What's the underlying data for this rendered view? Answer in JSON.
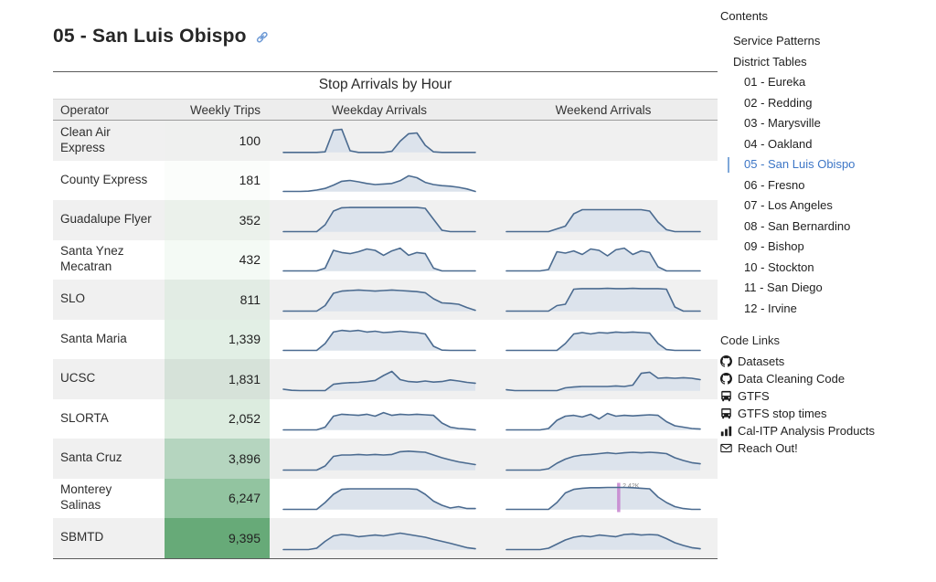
{
  "page": {
    "title": "05 - San Luis Obispo",
    "accent_blue": "#3d76c6"
  },
  "table": {
    "title": "Stop Arrivals by Hour",
    "columns": {
      "operator": "Operator",
      "weekly_trips": "Weekly Trips",
      "weekday": "Weekday Arrivals",
      "weekend": "Weekend Arrivals"
    },
    "rows": [
      {
        "operator": "Clean Air Express",
        "weekly_trips": "100",
        "trips_color": "#eff0ef"
      },
      {
        "operator": "County Express",
        "weekly_trips": "181",
        "trips_color": "#fbfdfb"
      },
      {
        "operator": "Guadalupe Flyer",
        "weekly_trips": "352",
        "trips_color": "#ebf1eb"
      },
      {
        "operator": "Santa Ynez Mecatran",
        "weekly_trips": "432",
        "trips_color": "#f4faf5"
      },
      {
        "operator": "SLO",
        "weekly_trips": "811",
        "trips_color": "#e2ece4"
      },
      {
        "operator": "Santa Maria",
        "weekly_trips": "1,339",
        "trips_color": "#e2efe5"
      },
      {
        "operator": "UCSC",
        "weekly_trips": "1,831",
        "trips_color": "#d6e2d9"
      },
      {
        "operator": "SLORTA",
        "weekly_trips": "2,052",
        "trips_color": "#dcecdf"
      },
      {
        "operator": "Santa Cruz",
        "weekly_trips": "3,896",
        "trips_color": "#b5d5bf"
      },
      {
        "operator": "Monterey Salinas",
        "weekly_trips": "6,247",
        "trips_color": "#92c4a0"
      },
      {
        "operator": "SBMTD",
        "weekly_trips": "9,395",
        "trips_color": "#67aa78"
      }
    ]
  },
  "chart_data": {
    "type": "area",
    "title": "Stop Arrivals by Hour",
    "x": "hour of day 0-23",
    "note": "sparkline area charts; values normalized 0-1 of each operator's peak hourly stop arrivals",
    "line_color": "#4b6b90",
    "fill_color": "#dce3ec",
    "series": [
      {
        "name": "Clean Air Express",
        "weekday": [
          0.04,
          0.04,
          0.04,
          0.04,
          0.04,
          0.06,
          0.85,
          0.88,
          0.1,
          0.04,
          0.04,
          0.04,
          0.04,
          0.08,
          0.45,
          0.72,
          0.75,
          0.3,
          0.06,
          0.04,
          0.04,
          0.04,
          0.04,
          0.04
        ],
        "weekend": null
      },
      {
        "name": "County Express",
        "weekday": [
          0.05,
          0.05,
          0.05,
          0.06,
          0.1,
          0.16,
          0.28,
          0.42,
          0.45,
          0.4,
          0.34,
          0.3,
          0.32,
          0.34,
          0.44,
          0.62,
          0.55,
          0.38,
          0.3,
          0.26,
          0.24,
          0.2,
          0.14,
          0.05
        ],
        "weekend": null
      },
      {
        "name": "Guadalupe Flyer",
        "weekday": [
          0.05,
          0.05,
          0.05,
          0.05,
          0.05,
          0.3,
          0.8,
          0.92,
          0.93,
          0.93,
          0.93,
          0.93,
          0.93,
          0.93,
          0.93,
          0.93,
          0.93,
          0.9,
          0.5,
          0.1,
          0.05,
          0.05,
          0.05,
          0.05
        ],
        "weekend": [
          0.05,
          0.05,
          0.05,
          0.05,
          0.05,
          0.05,
          0.15,
          0.25,
          0.7,
          0.85,
          0.85,
          0.85,
          0.85,
          0.85,
          0.85,
          0.85,
          0.85,
          0.8,
          0.4,
          0.12,
          0.05,
          0.05,
          0.05,
          0.05
        ]
      },
      {
        "name": "Santa Ynez Mecatran",
        "weekday": [
          0.05,
          0.05,
          0.05,
          0.05,
          0.05,
          0.15,
          0.8,
          0.72,
          0.68,
          0.75,
          0.85,
          0.8,
          0.62,
          0.78,
          0.88,
          0.62,
          0.72,
          0.68,
          0.15,
          0.05,
          0.05,
          0.05,
          0.05,
          0.05
        ],
        "weekend": [
          0.05,
          0.05,
          0.05,
          0.05,
          0.05,
          0.1,
          0.75,
          0.7,
          0.78,
          0.65,
          0.85,
          0.8,
          0.6,
          0.82,
          0.88,
          0.65,
          0.78,
          0.72,
          0.2,
          0.05,
          0.05,
          0.05,
          0.05,
          0.05
        ]
      },
      {
        "name": "SLO",
        "weekday": [
          0.05,
          0.05,
          0.05,
          0.05,
          0.05,
          0.25,
          0.7,
          0.78,
          0.8,
          0.82,
          0.8,
          0.78,
          0.8,
          0.82,
          0.8,
          0.78,
          0.76,
          0.72,
          0.5,
          0.35,
          0.33,
          0.3,
          0.18,
          0.08
        ],
        "weekend": [
          0.05,
          0.05,
          0.05,
          0.05,
          0.05,
          0.05,
          0.25,
          0.3,
          0.85,
          0.87,
          0.87,
          0.87,
          0.88,
          0.87,
          0.87,
          0.88,
          0.87,
          0.87,
          0.87,
          0.85,
          0.2,
          0.05,
          0.05,
          0.05
        ]
      },
      {
        "name": "Santa Maria",
        "weekday": [
          0.05,
          0.05,
          0.05,
          0.05,
          0.05,
          0.3,
          0.72,
          0.78,
          0.75,
          0.78,
          0.72,
          0.75,
          0.7,
          0.72,
          0.75,
          0.72,
          0.7,
          0.65,
          0.2,
          0.06,
          0.05,
          0.05,
          0.05,
          0.05
        ],
        "weekend": [
          0.05,
          0.05,
          0.05,
          0.05,
          0.05,
          0.05,
          0.05,
          0.3,
          0.65,
          0.7,
          0.65,
          0.7,
          0.68,
          0.72,
          0.7,
          0.72,
          0.7,
          0.68,
          0.3,
          0.08,
          0.05,
          0.05,
          0.05,
          0.05
        ]
      },
      {
        "name": "UCSC",
        "weekday": [
          0.1,
          0.06,
          0.05,
          0.05,
          0.05,
          0.05,
          0.28,
          0.32,
          0.34,
          0.35,
          0.38,
          0.42,
          0.6,
          0.75,
          0.45,
          0.38,
          0.36,
          0.4,
          0.36,
          0.38,
          0.44,
          0.4,
          0.35,
          0.32
        ],
        "weekend": [
          0.08,
          0.05,
          0.05,
          0.05,
          0.05,
          0.05,
          0.05,
          0.15,
          0.18,
          0.2,
          0.2,
          0.2,
          0.2,
          0.22,
          0.2,
          0.25,
          0.68,
          0.72,
          0.5,
          0.52,
          0.5,
          0.52,
          0.5,
          0.45
        ]
      },
      {
        "name": "SLORTA",
        "weekday": [
          0.05,
          0.05,
          0.05,
          0.05,
          0.05,
          0.15,
          0.55,
          0.62,
          0.6,
          0.58,
          0.62,
          0.55,
          0.68,
          0.58,
          0.62,
          0.6,
          0.62,
          0.6,
          0.58,
          0.3,
          0.15,
          0.1,
          0.08,
          0.05
        ],
        "weekend": [
          0.05,
          0.05,
          0.05,
          0.05,
          0.05,
          0.1,
          0.4,
          0.55,
          0.58,
          0.52,
          0.62,
          0.45,
          0.65,
          0.55,
          0.58,
          0.56,
          0.58,
          0.6,
          0.58,
          0.35,
          0.2,
          0.15,
          0.1,
          0.08
        ]
      },
      {
        "name": "Santa Cruz",
        "weekday": [
          0.05,
          0.05,
          0.05,
          0.05,
          0.05,
          0.2,
          0.55,
          0.6,
          0.6,
          0.62,
          0.6,
          0.62,
          0.6,
          0.62,
          0.72,
          0.74,
          0.72,
          0.7,
          0.6,
          0.5,
          0.42,
          0.35,
          0.3,
          0.25
        ],
        "weekend": [
          0.05,
          0.05,
          0.05,
          0.05,
          0.05,
          0.1,
          0.3,
          0.45,
          0.55,
          0.6,
          0.62,
          0.65,
          0.68,
          0.65,
          0.68,
          0.7,
          0.68,
          0.7,
          0.68,
          0.65,
          0.5,
          0.4,
          0.32,
          0.28
        ]
      },
      {
        "name": "Monterey Salinas",
        "weekday": [
          0.05,
          0.05,
          0.05,
          0.05,
          0.05,
          0.3,
          0.6,
          0.78,
          0.8,
          0.8,
          0.8,
          0.8,
          0.8,
          0.8,
          0.8,
          0.8,
          0.78,
          0.6,
          0.35,
          0.2,
          0.1,
          0.15,
          0.08,
          0.08
        ],
        "weekend": [
          0.05,
          0.05,
          0.05,
          0.05,
          0.05,
          0.05,
          0.3,
          0.65,
          0.78,
          0.82,
          0.84,
          0.84,
          0.85,
          0.85,
          0.85,
          0.84,
          0.82,
          0.8,
          0.5,
          0.3,
          0.15,
          0.08,
          0.05,
          0.05
        ],
        "weekend_marker": {
          "x_frac": 0.58,
          "label": "2.42K",
          "color": "#c583cf"
        }
      },
      {
        "name": "SBMTD",
        "weekday": [
          0.05,
          0.05,
          0.05,
          0.05,
          0.1,
          0.35,
          0.55,
          0.6,
          0.58,
          0.52,
          0.55,
          0.58,
          0.55,
          0.6,
          0.65,
          0.6,
          0.55,
          0.5,
          0.42,
          0.35,
          0.28,
          0.2,
          0.12,
          0.08
        ],
        "weekend": [
          0.05,
          0.05,
          0.05,
          0.05,
          0.05,
          0.1,
          0.25,
          0.4,
          0.5,
          0.55,
          0.52,
          0.58,
          0.55,
          0.52,
          0.6,
          0.62,
          0.58,
          0.6,
          0.58,
          0.45,
          0.3,
          0.2,
          0.12,
          0.08
        ]
      }
    ]
  },
  "sidebar": {
    "contents_title": "Contents",
    "items": [
      {
        "label": "Service Patterns",
        "level": 1,
        "active": false
      },
      {
        "label": "District Tables",
        "level": 1,
        "active": false
      },
      {
        "label": "01 - Eureka",
        "level": 2,
        "active": false
      },
      {
        "label": "02 - Redding",
        "level": 2,
        "active": false
      },
      {
        "label": "03 - Marysville",
        "level": 2,
        "active": false
      },
      {
        "label": "04 - Oakland",
        "level": 2,
        "active": false
      },
      {
        "label": "05 - San Luis Obispo",
        "level": 2,
        "active": true
      },
      {
        "label": "06 - Fresno",
        "level": 2,
        "active": false
      },
      {
        "label": "07 - Los Angeles",
        "level": 2,
        "active": false
      },
      {
        "label": "08 - San Bernardino",
        "level": 2,
        "active": false
      },
      {
        "label": "09 - Bishop",
        "level": 2,
        "active": false
      },
      {
        "label": "10 - Stockton",
        "level": 2,
        "active": false
      },
      {
        "label": "11 - San Diego",
        "level": 2,
        "active": false
      },
      {
        "label": "12 - Irvine",
        "level": 2,
        "active": false
      }
    ],
    "code_links_title": "Code Links",
    "code_links": [
      {
        "label": "Datasets",
        "icon": "github-icon"
      },
      {
        "label": "Data Cleaning Code",
        "icon": "github-icon"
      },
      {
        "label": "GTFS",
        "icon": "bus-icon"
      },
      {
        "label": "GTFS stop times",
        "icon": "bus-icon"
      },
      {
        "label": "Cal-ITP Analysis Products",
        "icon": "bar-chart-icon"
      },
      {
        "label": "Reach Out!",
        "icon": "mail-icon"
      }
    ]
  }
}
